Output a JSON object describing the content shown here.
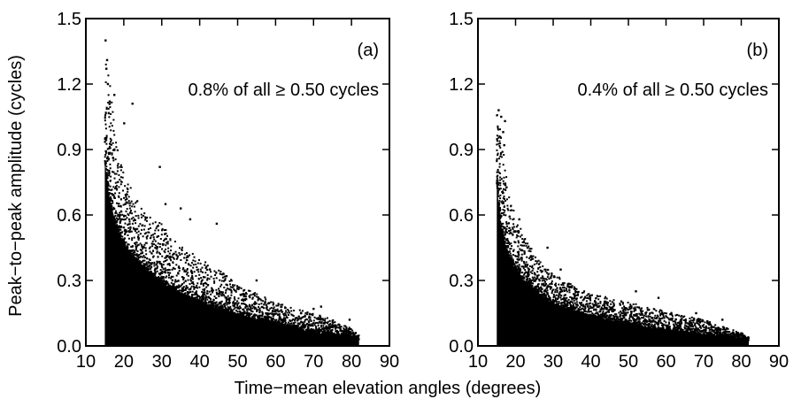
{
  "figure": {
    "xlabel": "Time−mean elevation angles (degrees)",
    "ylabel": "Peak−to−peak amplitude (cycles)"
  },
  "chart_data": [
    {
      "type": "scatter",
      "panel_label": "(a)",
      "annotation": "0.8% of all ≥ 0.50 cycles",
      "xlim": [
        10,
        90
      ],
      "ylim": [
        0.0,
        1.5
      ],
      "xticks": [
        "10",
        "20",
        "30",
        "40",
        "50",
        "60",
        "70",
        "80",
        "90"
      ],
      "yticks": [
        "0.0",
        "0.3",
        "0.6",
        "0.9",
        "1.2",
        "1.5"
      ],
      "marker_color": "#000000",
      "x_range_of_points": [
        15,
        82
      ],
      "upper_envelope": {
        "x": [
          15,
          16,
          18,
          20,
          22,
          25,
          28,
          30,
          33,
          36,
          40,
          45,
          50,
          55,
          60,
          65,
          70,
          75,
          80,
          82
        ],
        "y": [
          1.4,
          1.25,
          0.95,
          0.8,
          0.72,
          0.62,
          0.58,
          0.56,
          0.5,
          0.45,
          0.4,
          0.35,
          0.28,
          0.24,
          0.2,
          0.17,
          0.15,
          0.12,
          0.08,
          0.05
        ]
      },
      "dense_envelope": {
        "x": [
          15,
          16,
          18,
          20,
          22,
          25,
          28,
          30,
          35,
          40,
          45,
          50,
          55,
          60,
          65,
          70,
          75,
          80,
          82
        ],
        "y": [
          0.85,
          0.7,
          0.55,
          0.47,
          0.42,
          0.36,
          0.32,
          0.29,
          0.24,
          0.2,
          0.17,
          0.14,
          0.12,
          0.1,
          0.08,
          0.06,
          0.05,
          0.035,
          0.03
        ]
      },
      "outliers": [
        {
          "x": 15.2,
          "y": 1.4
        },
        {
          "x": 15.6,
          "y": 1.31
        },
        {
          "x": 15.4,
          "y": 1.27
        },
        {
          "x": 15.8,
          "y": 1.2
        },
        {
          "x": 16.3,
          "y": 1.12
        },
        {
          "x": 17.5,
          "y": 1.15
        },
        {
          "x": 22.3,
          "y": 1.11
        },
        {
          "x": 20.1,
          "y": 1.02
        },
        {
          "x": 29.5,
          "y": 0.82
        },
        {
          "x": 35.0,
          "y": 0.63
        },
        {
          "x": 37.5,
          "y": 0.58
        },
        {
          "x": 44.5,
          "y": 0.56
        },
        {
          "x": 31.0,
          "y": 0.65
        },
        {
          "x": 55.0,
          "y": 0.3
        },
        {
          "x": 70.0,
          "y": 0.17
        },
        {
          "x": 72.0,
          "y": 0.18
        },
        {
          "x": 79.5,
          "y": 0.12
        }
      ]
    },
    {
      "type": "scatter",
      "panel_label": "(b)",
      "annotation": "0.4% of all ≥ 0.50 cycles",
      "xlim": [
        10,
        90
      ],
      "ylim": [
        0.0,
        1.5
      ],
      "xticks": [
        "10",
        "20",
        "30",
        "40",
        "50",
        "60",
        "70",
        "80",
        "90"
      ],
      "yticks": [
        "0.0",
        "0.3",
        "0.6",
        "0.9",
        "1.2",
        "1.5"
      ],
      "marker_color": "#000000",
      "x_range_of_points": [
        15,
        82
      ],
      "upper_envelope": {
        "x": [
          15,
          16,
          18,
          20,
          22,
          25,
          28,
          30,
          35,
          40,
          45,
          50,
          55,
          60,
          65,
          70,
          75,
          80,
          82
        ],
        "y": [
          1.08,
          1.0,
          0.72,
          0.6,
          0.52,
          0.42,
          0.36,
          0.33,
          0.28,
          0.24,
          0.22,
          0.2,
          0.18,
          0.16,
          0.14,
          0.12,
          0.09,
          0.06,
          0.04
        ]
      },
      "dense_envelope": {
        "x": [
          15,
          16,
          18,
          20,
          22,
          25,
          28,
          30,
          35,
          40,
          45,
          50,
          55,
          60,
          65,
          70,
          75,
          80,
          82
        ],
        "y": [
          0.75,
          0.55,
          0.42,
          0.35,
          0.3,
          0.25,
          0.21,
          0.19,
          0.16,
          0.13,
          0.11,
          0.1,
          0.08,
          0.07,
          0.06,
          0.05,
          0.04,
          0.03,
          0.025
        ]
      },
      "outliers": [
        {
          "x": 15.5,
          "y": 1.08
        },
        {
          "x": 16.2,
          "y": 1.05
        },
        {
          "x": 17.2,
          "y": 1.03
        },
        {
          "x": 16.7,
          "y": 0.98
        },
        {
          "x": 17.0,
          "y": 0.92
        },
        {
          "x": 21.0,
          "y": 0.58
        },
        {
          "x": 28.5,
          "y": 0.45
        },
        {
          "x": 32.0,
          "y": 0.35
        },
        {
          "x": 52.0,
          "y": 0.25
        },
        {
          "x": 58.0,
          "y": 0.22
        },
        {
          "x": 68.0,
          "y": 0.15
        },
        {
          "x": 75.0,
          "y": 0.12
        }
      ]
    }
  ]
}
